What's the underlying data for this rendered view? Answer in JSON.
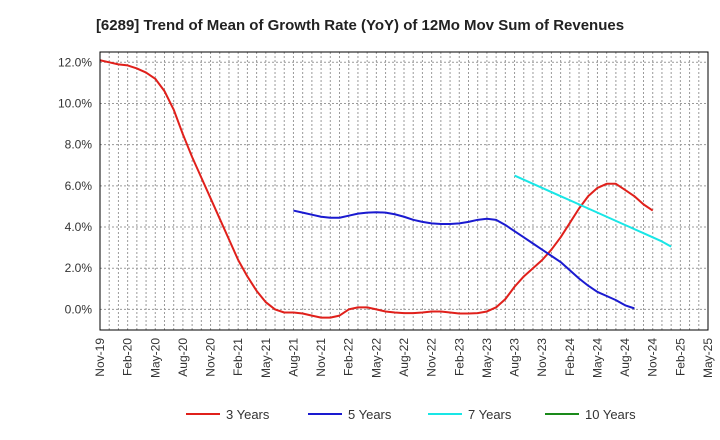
{
  "chart_data": {
    "type": "line",
    "title": "[6289]  Trend of Mean of Growth Rate (YoY) of 12Mo Mov Sum of Revenues",
    "xlabel": "",
    "ylabel": "",
    "ylim": [
      -1.0,
      12.5
    ],
    "yticks": [
      0,
      2,
      4,
      6,
      8,
      10,
      12
    ],
    "ytick_labels": [
      "0.0%",
      "2.0%",
      "4.0%",
      "6.0%",
      "8.0%",
      "10.0%",
      "12.0%"
    ],
    "xtick_labels": [
      "Nov-19",
      "Feb-20",
      "May-20",
      "Aug-20",
      "Nov-20",
      "Feb-21",
      "May-21",
      "Aug-21",
      "Nov-21",
      "Feb-22",
      "May-22",
      "Aug-22",
      "Nov-22",
      "Feb-23",
      "May-23",
      "Aug-23",
      "Nov-23",
      "Feb-24",
      "May-24",
      "Aug-24",
      "Nov-24",
      "Feb-25",
      "May-25"
    ],
    "x_start_label": "Nov-19",
    "n_months": 67,
    "grid": true,
    "legend_position": "bottom",
    "series": [
      {
        "name": "3 Years",
        "color": "#e0201b",
        "start_index": 0,
        "values": [
          12.1,
          12.0,
          11.9,
          11.85,
          11.7,
          11.5,
          11.2,
          10.6,
          9.7,
          8.5,
          7.4,
          6.4,
          5.4,
          4.4,
          3.4,
          2.4,
          1.6,
          0.9,
          0.35,
          0.0,
          -0.15,
          -0.15,
          -0.2,
          -0.3,
          -0.4,
          -0.4,
          -0.3,
          0.0,
          0.1,
          0.1,
          0.0,
          -0.1,
          -0.15,
          -0.18,
          -0.18,
          -0.15,
          -0.1,
          -0.1,
          -0.15,
          -0.2,
          -0.2,
          -0.18,
          -0.1,
          0.1,
          0.5,
          1.1,
          1.6,
          2.0,
          2.4,
          2.9,
          3.5,
          4.2,
          4.9,
          5.5,
          5.9,
          6.1,
          6.1,
          5.8,
          5.5,
          5.1,
          4.8
        ]
      },
      {
        "name": "5 Years",
        "color": "#1a1ad0",
        "start_index": 21,
        "values": [
          4.8,
          4.7,
          4.6,
          4.5,
          4.45,
          4.45,
          4.55,
          4.65,
          4.7,
          4.72,
          4.7,
          4.62,
          4.5,
          4.35,
          4.25,
          4.18,
          4.15,
          4.15,
          4.18,
          4.25,
          4.35,
          4.4,
          4.35,
          4.1,
          3.8,
          3.5,
          3.2,
          2.9,
          2.6,
          2.3,
          1.9,
          1.5,
          1.15,
          0.85,
          0.65,
          0.45,
          0.2,
          0.05
        ]
      },
      {
        "name": "7 Years",
        "color": "#19e6e6",
        "start_index": 45,
        "values": [
          6.5,
          6.3,
          6.1,
          5.9,
          5.7,
          5.5,
          5.3,
          5.1,
          4.9,
          4.7,
          4.5,
          4.3,
          4.1,
          3.9,
          3.7,
          3.5,
          3.3,
          3.05
        ]
      },
      {
        "name": "10 Years",
        "color": "#1a8a1a",
        "start_index": 0,
        "values": []
      }
    ]
  }
}
